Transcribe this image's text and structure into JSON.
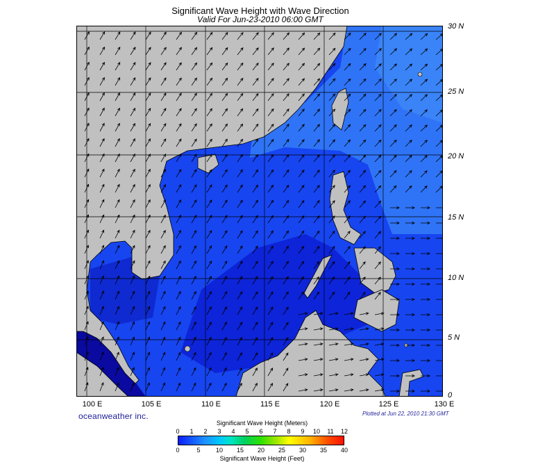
{
  "header": {
    "title": "Significant Wave Height with Wave Direction",
    "subtitle": "Valid For Jun-23-2010 06:00 GMT"
  },
  "map": {
    "lat_labels": [
      "30 N",
      "25 N",
      "20 N",
      "15 N",
      "10 N",
      "5 N",
      "0"
    ],
    "lon_labels": [
      "100 E",
      "105 E",
      "110 E",
      "115 E",
      "120 E",
      "125 E",
      "130 E"
    ],
    "colors": {
      "land": "#c0c0c0",
      "sea_deep": "#0a1bdc",
      "sea_mid": "#1745f0",
      "sea_light": "#2f74f6",
      "sea_dark": "#0a0aa0",
      "grid": "#000000"
    }
  },
  "footer": {
    "brand": "oceanweather inc.",
    "plotted": "Plotted at Jun 22, 2010 21:30 GMT"
  },
  "legend": {
    "meters_label": "Significant Wave Height (Meters)",
    "meters_ticks": [
      "0",
      "1",
      "2",
      "3",
      "4",
      "5",
      "6",
      "7",
      "8",
      "9",
      "10",
      "11",
      "12"
    ],
    "feet_label": "Significant Wave Height (Feet)",
    "feet_ticks": [
      "0",
      "5",
      "10",
      "15",
      "20",
      "25",
      "30",
      "35",
      "40"
    ]
  }
}
